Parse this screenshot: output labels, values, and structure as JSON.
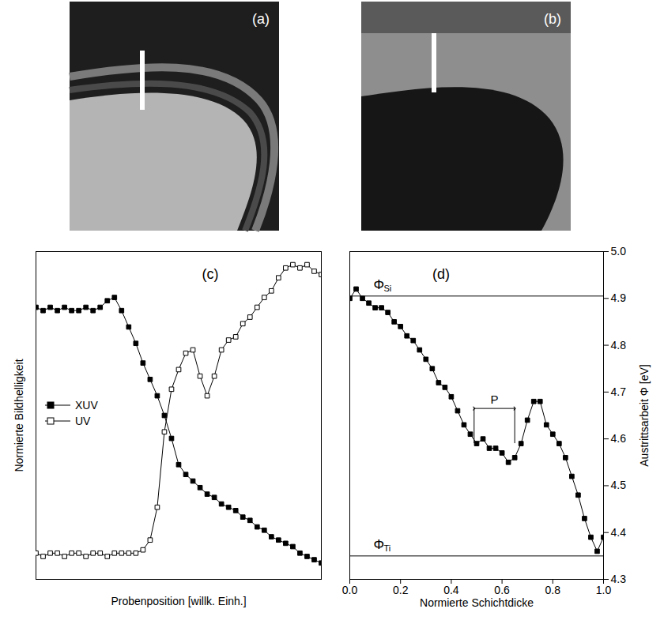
{
  "images": [
    {
      "label": "(a)"
    },
    {
      "label": "(b)"
    }
  ],
  "chart_data": [
    {
      "type": "line",
      "panel_label": "(c)",
      "x_label": "Probenposition [willk. Einh.]",
      "y_label": "Normierte Bildhelligkeit",
      "xlim": [
        0,
        1
      ],
      "ylim": [
        0,
        1
      ],
      "xticks": [],
      "yticks": [],
      "tick_labels": false,
      "legend": "left",
      "x": [
        0,
        0.025,
        0.05,
        0.075,
        0.1,
        0.125,
        0.15,
        0.175,
        0.2,
        0.225,
        0.25,
        0.275,
        0.3,
        0.325,
        0.35,
        0.375,
        0.4,
        0.425,
        0.45,
        0.475,
        0.5,
        0.525,
        0.55,
        0.575,
        0.6,
        0.625,
        0.65,
        0.675,
        0.7,
        0.725,
        0.75,
        0.775,
        0.8,
        0.825,
        0.85,
        0.875,
        0.9,
        0.925,
        0.95,
        0.975,
        1.0
      ],
      "series": [
        {
          "name": "XUV",
          "color": "#000000",
          "marker": "square",
          "values": [
            0.83,
            0.82,
            0.83,
            0.82,
            0.83,
            0.82,
            0.82,
            0.83,
            0.82,
            0.83,
            0.85,
            0.86,
            0.82,
            0.77,
            0.72,
            0.66,
            0.61,
            0.56,
            0.5,
            0.43,
            0.35,
            0.32,
            0.3,
            0.28,
            0.26,
            0.25,
            0.23,
            0.22,
            0.21,
            0.19,
            0.18,
            0.16,
            0.15,
            0.13,
            0.12,
            0.11,
            0.1,
            0.08,
            0.07,
            0.06,
            0.05
          ]
        },
        {
          "name": "UV",
          "color": "#000000",
          "marker": "open_square",
          "values": [
            0.08,
            0.07,
            0.08,
            0.08,
            0.07,
            0.08,
            0.08,
            0.07,
            0.08,
            0.08,
            0.07,
            0.08,
            0.08,
            0.08,
            0.08,
            0.09,
            0.12,
            0.22,
            0.45,
            0.58,
            0.64,
            0.69,
            0.7,
            0.62,
            0.56,
            0.62,
            0.7,
            0.73,
            0.74,
            0.78,
            0.8,
            0.83,
            0.86,
            0.88,
            0.92,
            0.95,
            0.96,
            0.95,
            0.96,
            0.94,
            0.93
          ]
        }
      ]
    },
    {
      "type": "line",
      "panel_label": "(d)",
      "x_label": "Normierte Schichtdicke",
      "y_label": "Austrittsarbeit Φ [eV]",
      "xlim": [
        0,
        1
      ],
      "ylim": [
        4.3,
        5.0
      ],
      "xticks": [
        {
          "value": 0,
          "label": "0.0"
        },
        0.2,
        0.4,
        0.6,
        0.8,
        {
          "value": 1,
          "label": "1.0"
        }
      ],
      "yticks": [
        4.3,
        4.4,
        4.5,
        4.6,
        4.7,
        4.8,
        4.9,
        {
          "value": 5,
          "label": "5.0"
        }
      ],
      "x": [
        0,
        0.025,
        0.05,
        0.075,
        0.1,
        0.125,
        0.15,
        0.175,
        0.2,
        0.225,
        0.25,
        0.275,
        0.3,
        0.325,
        0.35,
        0.375,
        0.4,
        0.425,
        0.45,
        0.475,
        0.5,
        0.525,
        0.55,
        0.575,
        0.6,
        0.625,
        0.65,
        0.675,
        0.7,
        0.725,
        0.75,
        0.775,
        0.8,
        0.825,
        0.85,
        0.875,
        0.9,
        0.925,
        0.95,
        0.975,
        1.0
      ],
      "series": [
        {
          "color": "#000000",
          "marker": "square",
          "values": [
            4.9,
            4.92,
            4.9,
            4.89,
            4.88,
            4.88,
            4.87,
            4.85,
            4.84,
            4.82,
            4.81,
            4.79,
            4.77,
            4.75,
            4.72,
            4.71,
            4.69,
            4.66,
            4.63,
            4.61,
            4.59,
            4.6,
            4.58,
            4.58,
            4.57,
            4.55,
            4.56,
            4.59,
            4.64,
            4.68,
            4.68,
            4.63,
            4.61,
            4.59,
            4.56,
            4.52,
            4.48,
            4.43,
            4.39,
            4.36,
            4.39
          ]
        }
      ],
      "reference_lines": [
        {
          "value": 4.905,
          "symbol": "Φ",
          "subscript": "Si"
        },
        {
          "value": 4.35,
          "symbol": "Φ",
          "subscript": "Ti"
        }
      ],
      "annotations": [
        {
          "text": "P",
          "x": [
            0.49,
            0.65
          ],
          "y": [
            4.59,
            4.665
          ]
        }
      ]
    }
  ]
}
